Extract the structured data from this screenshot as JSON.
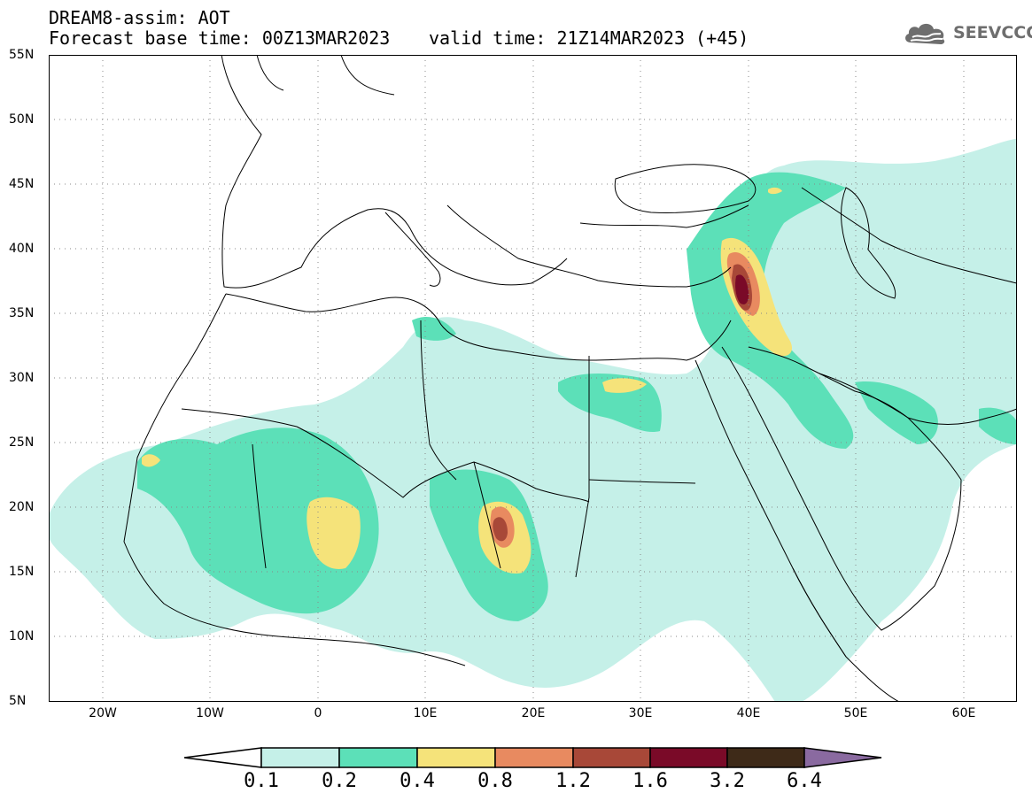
{
  "header": {
    "line1": "DREAM8-assim: AOT",
    "line2": "Forecast base time: 00Z13MAR2023",
    "valid": "valid time: 21Z14MAR2023 (+45)"
  },
  "logo": {
    "text": "SEEVCCC",
    "icon": "cloud-icon"
  },
  "map": {
    "lon_range": [
      -25,
      65
    ],
    "lat_range": [
      5,
      55
    ],
    "lat_labels": [
      "55N",
      "50N",
      "45N",
      "40N",
      "35N",
      "30N",
      "25N",
      "20N",
      "15N",
      "10N",
      "5N"
    ],
    "lon_labels": [
      "20W",
      "10W",
      "0",
      "10E",
      "20E",
      "30E",
      "40E",
      "50E",
      "60E"
    ]
  },
  "colorbar": {
    "labels": [
      "0.1",
      "0.2",
      "0.4",
      "0.8",
      "1.2",
      "1.6",
      "3.2",
      "6.4"
    ],
    "colors": [
      "#ffffff",
      "#c5f0e8",
      "#5ce0b8",
      "#f5e37a",
      "#e88a60",
      "#a84838",
      "#7a0a28",
      "#3e2a18",
      "#8a6aa0"
    ]
  }
}
